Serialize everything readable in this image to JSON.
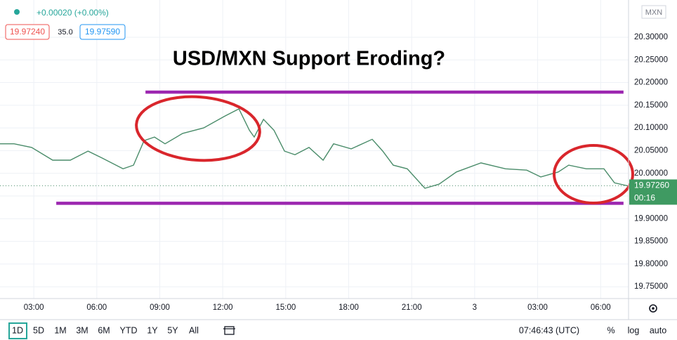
{
  "chart_data": {
    "type": "line",
    "title": "USD/MXN Support Eroding?",
    "x": [
      1.39,
      2.06,
      2.9,
      3.9,
      4.74,
      5.58,
      6.24,
      7.25,
      7.75,
      8.25,
      8.75,
      9.25,
      10.09,
      11.09,
      12.1,
      12.77,
      13.27,
      13.5,
      13.94,
      14.44,
      14.94,
      15.44,
      16.11,
      16.78,
      17.28,
      18.12,
      19.12,
      19.62,
      20.12,
      20.79,
      21.63,
      22.3,
      23.13,
      24.3,
      25.47,
      26.48,
      27.15,
      27.98,
      28.48,
      29.32,
      30.16,
      30.66,
      31.33
    ],
    "values": [
      20.065,
      20.065,
      20.057,
      20.029,
      20.029,
      20.049,
      20.034,
      20.01,
      20.018,
      20.072,
      20.08,
      20.065,
      20.088,
      20.1,
      20.126,
      20.142,
      20.095,
      20.08,
      20.119,
      20.095,
      20.049,
      20.041,
      20.057,
      20.029,
      20.065,
      20.054,
      20.075,
      20.049,
      20.018,
      20.01,
      19.967,
      19.976,
      20.003,
      20.023,
      20.01,
      20.007,
      19.992,
      20.003,
      20.018,
      20.01,
      20.01,
      19.979,
      19.972
    ],
    "color": "#4a8c6a",
    "xlim": [
      1.39,
      31.33
    ],
    "ylim": [
      19.724,
      20.382
    ],
    "xticks": [
      {
        "value": 3,
        "label": "03:00"
      },
      {
        "value": 6,
        "label": "06:00"
      },
      {
        "value": 9,
        "label": "09:00"
      },
      {
        "value": 12,
        "label": "12:00"
      },
      {
        "value": 15,
        "label": "15:00"
      },
      {
        "value": 18,
        "label": "18:00"
      },
      {
        "value": 21,
        "label": "21:00"
      },
      {
        "value": 24,
        "label": "3"
      },
      {
        "value": 27,
        "label": "03:00"
      },
      {
        "value": 30,
        "label": "06:00"
      }
    ],
    "yticks": [
      {
        "value": 19.75,
        "label": "19.75000"
      },
      {
        "value": 19.8,
        "label": "19.80000"
      },
      {
        "value": 19.85,
        "label": "19.85000"
      },
      {
        "value": 19.9,
        "label": "19.90000"
      },
      {
        "value": 19.95,
        "label": "19.95000"
      },
      {
        "value": 20.0,
        "label": "20.00000"
      },
      {
        "value": 20.05,
        "label": "20.05000"
      },
      {
        "value": 20.1,
        "label": "20.10000"
      },
      {
        "value": 20.15,
        "label": "20.15000"
      },
      {
        "value": 20.2,
        "label": "20.20000"
      },
      {
        "value": 20.25,
        "label": "20.25000"
      },
      {
        "value": 20.3,
        "label": "20.30000"
      }
    ],
    "grid": true,
    "currency": "MXN",
    "last_price": {
      "value": 19.9726,
      "label": "19.97260"
    },
    "countdown": "00:16",
    "support_lines": [
      {
        "value": 20.179,
        "x_range": [
          8.32,
          31.09
        ],
        "color": "#9c27b0"
      },
      {
        "value": 19.934,
        "x_range": [
          4.07,
          31.09
        ],
        "color": "#9c27b0"
      }
    ]
  },
  "header": {
    "change": "+0.00020 (+0.00%)",
    "bid": "19.97240",
    "spread": "35.0",
    "ask": "19.97590"
  },
  "toolbar": {
    "ranges": [
      "1D",
      "5D",
      "1M",
      "3M",
      "6M",
      "YTD",
      "1Y",
      "5Y",
      "All"
    ],
    "clock": "07:46:43 (UTC)",
    "options": [
      "%",
      "log",
      "auto"
    ]
  }
}
